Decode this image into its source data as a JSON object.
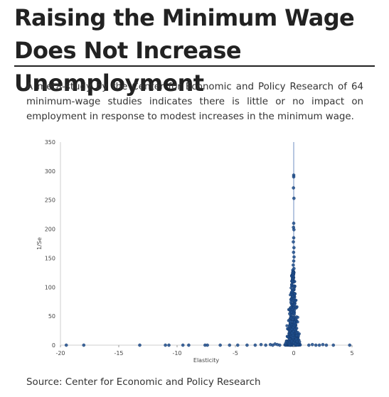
{
  "article": {
    "title": "Raising the Minimum Wage Does Not Increase Unemployment",
    "intro": "A meta-study by the Center for Economic and Policy Research of 64 minimum-wage studies indicates there is little or no impact on employment in response to modest increases in the minimum wage.",
    "source": "Source: Center for Economic and Policy Research"
  },
  "chart_data": {
    "type": "scatter",
    "title": "",
    "xlabel": "Elasticity",
    "ylabel": "1/Se",
    "xlim": [
      -20,
      5
    ],
    "ylim": [
      0,
      350
    ],
    "xticks": [
      -20,
      -15,
      -10,
      -5,
      0,
      5
    ],
    "yticks": [
      0,
      50,
      100,
      150,
      200,
      250,
      300,
      350
    ],
    "reference_line_x": 0,
    "grid": false,
    "legend": false,
    "point_color": "#1f4e8c",
    "points": [
      {
        "x": -19.5,
        "y": 0
      },
      {
        "x": -18.0,
        "y": 0
      },
      {
        "x": -13.2,
        "y": 0
      },
      {
        "x": -11.0,
        "y": 0
      },
      {
        "x": -10.7,
        "y": 0
      },
      {
        "x": -9.5,
        "y": 0
      },
      {
        "x": -9.0,
        "y": 0
      },
      {
        "x": -7.6,
        "y": 0
      },
      {
        "x": -7.4,
        "y": 0
      },
      {
        "x": -6.3,
        "y": 0
      },
      {
        "x": -5.5,
        "y": 0
      },
      {
        "x": -4.8,
        "y": 0
      },
      {
        "x": -4.0,
        "y": 0
      },
      {
        "x": -3.3,
        "y": 0
      },
      {
        "x": -2.8,
        "y": 1
      },
      {
        "x": -2.4,
        "y": 0
      },
      {
        "x": -2.0,
        "y": 1
      },
      {
        "x": -1.8,
        "y": 0
      },
      {
        "x": -1.6,
        "y": 2
      },
      {
        "x": -1.4,
        "y": 1
      },
      {
        "x": -1.2,
        "y": 0
      },
      {
        "x": 1.3,
        "y": 0
      },
      {
        "x": 1.6,
        "y": 1
      },
      {
        "x": 1.9,
        "y": 0
      },
      {
        "x": 2.2,
        "y": 0
      },
      {
        "x": 2.5,
        "y": 1
      },
      {
        "x": 2.8,
        "y": 0
      },
      {
        "x": 3.4,
        "y": 0
      },
      {
        "x": 4.8,
        "y": 0
      },
      {
        "x": 0.0,
        "y": 293
      },
      {
        "x": 0.0,
        "y": 290
      },
      {
        "x": -0.02,
        "y": 271
      },
      {
        "x": 0.02,
        "y": 253
      },
      {
        "x": 0.0,
        "y": 210
      },
      {
        "x": -0.02,
        "y": 203
      },
      {
        "x": 0.02,
        "y": 199
      },
      {
        "x": 0.0,
        "y": 185
      },
      {
        "x": -0.03,
        "y": 178
      },
      {
        "x": 0.02,
        "y": 168
      },
      {
        "x": -0.01,
        "y": 160
      },
      {
        "x": 0.03,
        "y": 152
      },
      {
        "x": 0.0,
        "y": 145
      },
      {
        "x": -0.04,
        "y": 138
      },
      {
        "x": 0.02,
        "y": 132
      }
    ],
    "cluster": {
      "count": 650,
      "seed": 7,
      "center_x": -0.05,
      "spread_x": 0.28,
      "max_y": 130
    }
  }
}
